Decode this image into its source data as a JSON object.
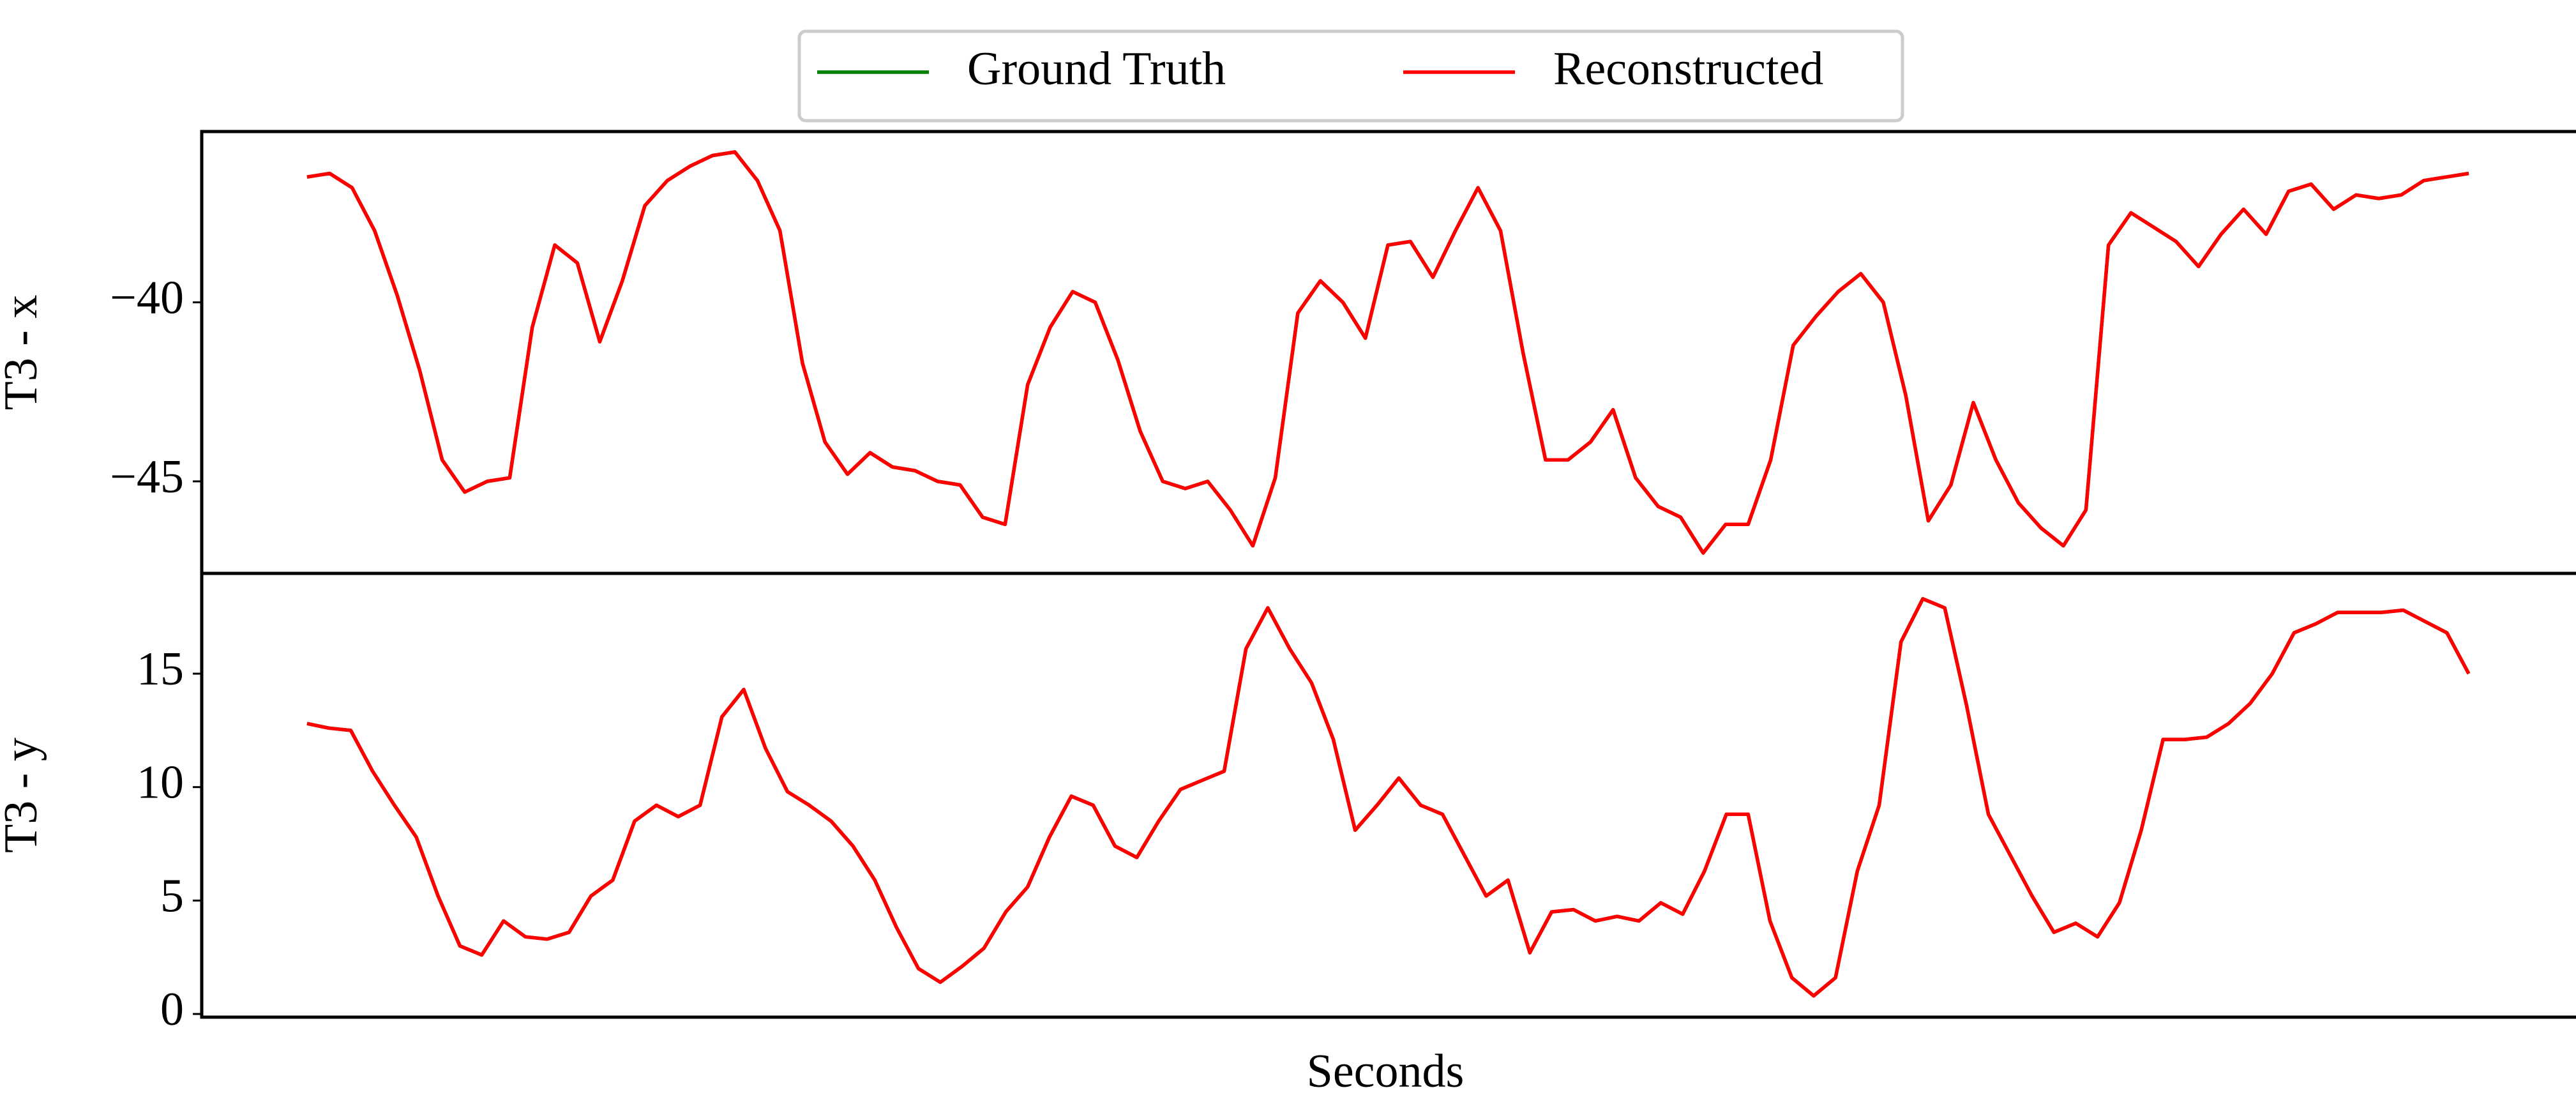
{
  "chart_data": [
    {
      "type": "line",
      "ylabel": "T3 - x",
      "ylim": [
        -47.57,
        -35.23
      ],
      "yticks": [
        {
          "value": -45,
          "label": "−45"
        },
        {
          "value": -40,
          "label": "−40"
        }
      ],
      "series": [
        {
          "name": "Ground Truth",
          "color": "#008000",
          "values": [
            -36.5,
            -36.4,
            -36.8,
            -38.0,
            -39.8,
            -41.9,
            -44.4,
            -45.3,
            -45.0,
            -44.9,
            -40.7,
            -38.4,
            -38.9,
            -41.1,
            -39.4,
            -37.3,
            -36.6,
            -36.2,
            -35.9,
            -35.8,
            -36.6,
            -38.0,
            -41.7,
            -43.9,
            -44.8,
            -44.2,
            -44.6,
            -44.7,
            -45.0,
            -45.1,
            -46.0,
            -46.2,
            -42.3,
            -40.7,
            -39.7,
            -40.0,
            -41.6,
            -43.6,
            -45.0,
            -45.2,
            -45.0,
            -45.8,
            -46.8,
            -44.9,
            -40.3,
            -39.4,
            -40.0,
            -41.0,
            -38.4,
            -38.3,
            -39.3,
            -38.0,
            -36.8,
            -38.0,
            -41.4,
            -44.4,
            -44.4,
            -43.9,
            -43.0,
            -44.9,
            -45.7,
            -46.0,
            -47.0,
            -46.2,
            -46.2,
            -44.4,
            -41.2,
            -40.4,
            -39.7,
            -39.2,
            -40.0,
            -42.6,
            -46.1,
            -45.1,
            -42.8,
            -44.4,
            -45.6,
            -46.3,
            -46.8,
            -45.8,
            -38.4,
            -37.5,
            -37.9,
            -38.3,
            -39.0,
            -38.1,
            -37.4,
            -38.1,
            -36.9,
            -36.7,
            -37.4,
            -37.0,
            -37.1,
            -37.0,
            -36.6,
            -36.5,
            -36.4
          ]
        },
        {
          "name": "Reconstructed",
          "color": "#ff0000",
          "values": [
            -36.5,
            -36.4,
            -36.8,
            -38.0,
            -39.8,
            -41.9,
            -44.4,
            -45.3,
            -45.0,
            -44.9,
            -40.7,
            -38.4,
            -38.9,
            -41.1,
            -39.4,
            -37.3,
            -36.6,
            -36.2,
            -35.9,
            -35.8,
            -36.6,
            -38.0,
            -41.7,
            -43.9,
            -44.8,
            -44.2,
            -44.6,
            -44.7,
            -45.0,
            -45.1,
            -46.0,
            -46.2,
            -42.3,
            -40.7,
            -39.7,
            -40.0,
            -41.6,
            -43.6,
            -45.0,
            -45.2,
            -45.0,
            -45.8,
            -46.8,
            -44.9,
            -40.3,
            -39.4,
            -40.0,
            -41.0,
            -38.4,
            -38.3,
            -39.3,
            -38.0,
            -36.8,
            -38.0,
            -41.4,
            -44.4,
            -44.4,
            -43.9,
            -43.0,
            -44.9,
            -45.7,
            -46.0,
            -47.0,
            -46.2,
            -46.2,
            -44.4,
            -41.2,
            -40.4,
            -39.7,
            -39.2,
            -40.0,
            -42.6,
            -46.1,
            -45.1,
            -42.8,
            -44.4,
            -45.6,
            -46.3,
            -46.8,
            -45.8,
            -38.4,
            -37.5,
            -37.9,
            -38.3,
            -39.0,
            -38.1,
            -37.4,
            -38.1,
            -36.9,
            -36.7,
            -37.4,
            -37.0,
            -37.1,
            -37.0,
            -36.6,
            -36.5,
            -36.4
          ]
        }
      ]
    },
    {
      "type": "line",
      "ylabel": "T3 - y",
      "xlabel": "Seconds",
      "ylim": [
        -0.14,
        19.42
      ],
      "yticks": [
        0,
        5,
        10,
        15
      ],
      "series": [
        {
          "color": "#008000",
          "values": [
            12.8,
            12.6,
            12.5,
            10.7,
            9.2,
            7.8,
            5.2,
            3.0,
            2.6,
            4.1,
            3.4,
            3.3,
            3.6,
            5.2,
            5.9,
            8.5,
            9.2,
            8.7,
            9.2,
            13.1,
            14.3,
            11.7,
            9.8,
            9.2,
            8.5,
            7.4,
            5.9,
            3.8,
            2.0,
            1.4,
            2.1,
            2.9,
            4.5,
            5.6,
            7.8,
            9.6,
            9.2,
            7.4,
            6.9,
            8.5,
            9.9,
            10.3,
            10.7,
            16.1,
            17.9,
            16.1,
            14.6,
            12.1,
            8.1,
            9.2,
            10.4,
            9.2,
            8.8,
            7.0,
            5.2,
            5.9,
            2.7,
            4.5,
            4.6,
            4.1,
            4.3,
            4.1,
            4.9,
            4.4,
            6.3,
            8.8,
            8.8,
            4.1,
            1.6,
            0.8,
            1.6,
            6.3,
            9.2,
            16.4,
            18.3,
            17.9,
            13.6,
            8.8,
            7.0,
            5.2,
            3.6,
            4.0,
            3.4,
            4.9,
            8.1,
            12.1,
            12.1,
            12.2,
            12.8,
            13.7,
            15.0,
            16.8,
            17.2,
            17.7,
            17.7,
            17.7,
            17.8,
            17.3,
            16.8,
            15.0
          ]
        },
        {
          "color": "#ff0000",
          "values": [
            12.8,
            12.6,
            12.5,
            10.7,
            9.2,
            7.8,
            5.2,
            3.0,
            2.6,
            4.1,
            3.4,
            3.3,
            3.6,
            5.2,
            5.9,
            8.5,
            9.2,
            8.7,
            9.2,
            13.1,
            14.3,
            11.7,
            9.8,
            9.2,
            8.5,
            7.4,
            5.9,
            3.8,
            2.0,
            1.4,
            2.1,
            2.9,
            4.5,
            5.6,
            7.8,
            9.6,
            9.2,
            7.4,
            6.9,
            8.5,
            9.9,
            10.3,
            10.7,
            16.1,
            17.9,
            16.1,
            14.6,
            12.1,
            8.1,
            9.2,
            10.4,
            9.2,
            8.8,
            7.0,
            5.2,
            5.9,
            2.7,
            4.5,
            4.6,
            4.1,
            4.3,
            4.1,
            4.9,
            4.4,
            6.3,
            8.8,
            8.8,
            4.1,
            1.6,
            0.8,
            1.6,
            6.3,
            9.2,
            16.4,
            18.3,
            17.9,
            13.6,
            8.8,
            7.0,
            5.2,
            3.6,
            4.0,
            3.4,
            4.9,
            8.1,
            12.1,
            12.1,
            12.2,
            12.8,
            13.7,
            15.0,
            16.8,
            17.2,
            17.7,
            17.7,
            17.7,
            17.8,
            17.3,
            16.8,
            15.0
          ]
        }
      ]
    }
  ]
}
